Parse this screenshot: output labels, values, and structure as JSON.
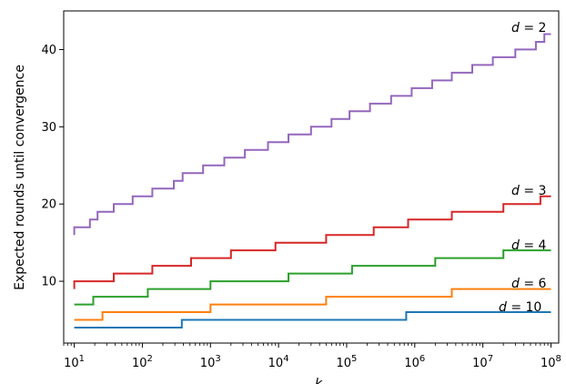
{
  "chart_data": {
    "type": "line",
    "step": true,
    "xscale": "log",
    "xlim": [
      7,
      130000000
    ],
    "ylim": [
      2,
      45
    ],
    "xlabel": "k",
    "ylabel": "Expected rounds until convergence",
    "title": "",
    "grid": false,
    "legend": "none",
    "x_ticks": [
      10,
      100,
      1000,
      10000,
      100000,
      1000000,
      10000000,
      100000000
    ],
    "x_tick_labels": [
      {
        "base": "10",
        "exp": "1"
      },
      {
        "base": "10",
        "exp": "2"
      },
      {
        "base": "10",
        "exp": "3"
      },
      {
        "base": "10",
        "exp": "4"
      },
      {
        "base": "10",
        "exp": "5"
      },
      {
        "base": "10",
        "exp": "6"
      },
      {
        "base": "10",
        "exp": "7"
      },
      {
        "base": "10",
        "exp": "8"
      }
    ],
    "y_ticks": [
      10,
      20,
      30,
      40
    ],
    "series": [
      {
        "name": "d = 2",
        "color": "#9467bd",
        "points": [
          [
            10,
            16
          ],
          [
            10,
            17
          ],
          [
            17,
            17
          ],
          [
            17,
            18
          ],
          [
            22,
            18
          ],
          [
            22,
            19
          ],
          [
            38,
            19
          ],
          [
            38,
            20
          ],
          [
            72,
            20
          ],
          [
            72,
            21
          ],
          [
            140,
            21
          ],
          [
            140,
            22
          ],
          [
            290,
            22
          ],
          [
            290,
            23
          ],
          [
            390,
            23
          ],
          [
            390,
            24
          ],
          [
            780,
            24
          ],
          [
            780,
            25
          ],
          [
            1600,
            25
          ],
          [
            1600,
            26
          ],
          [
            3200,
            26
          ],
          [
            3200,
            27
          ],
          [
            7000,
            27
          ],
          [
            7000,
            28
          ],
          [
            14000,
            28
          ],
          [
            14000,
            29
          ],
          [
            30000,
            29
          ],
          [
            30000,
            30
          ],
          [
            60000,
            30
          ],
          [
            60000,
            31
          ],
          [
            110000,
            31
          ],
          [
            110000,
            32
          ],
          [
            220000,
            32
          ],
          [
            220000,
            33
          ],
          [
            450000,
            33
          ],
          [
            450000,
            34
          ],
          [
            900000,
            34
          ],
          [
            900000,
            35
          ],
          [
            1800000,
            35
          ],
          [
            1800000,
            36
          ],
          [
            3500000,
            36
          ],
          [
            3500000,
            37
          ],
          [
            7000000,
            37
          ],
          [
            7000000,
            38
          ],
          [
            14000000,
            38
          ],
          [
            14000000,
            39
          ],
          [
            30000000,
            39
          ],
          [
            30000000,
            40
          ],
          [
            60000000,
            40
          ],
          [
            60000000,
            41
          ],
          [
            80000000,
            41
          ],
          [
            80000000,
            42
          ],
          [
            100000000,
            42
          ]
        ]
      },
      {
        "name": "d = 3",
        "color": "#d62728",
        "points": [
          [
            10,
            9
          ],
          [
            10,
            10
          ],
          [
            38,
            10
          ],
          [
            38,
            11
          ],
          [
            140,
            11
          ],
          [
            140,
            12
          ],
          [
            520,
            12
          ],
          [
            520,
            13
          ],
          [
            2000,
            13
          ],
          [
            2000,
            14
          ],
          [
            9000,
            14
          ],
          [
            9000,
            15
          ],
          [
            50000,
            15
          ],
          [
            50000,
            16
          ],
          [
            250000,
            16
          ],
          [
            250000,
            17
          ],
          [
            800000,
            17
          ],
          [
            800000,
            18
          ],
          [
            3500000,
            18
          ],
          [
            3500000,
            19
          ],
          [
            20000000,
            19
          ],
          [
            20000000,
            20
          ],
          [
            70000000,
            20
          ],
          [
            70000000,
            21
          ],
          [
            100000000,
            21
          ]
        ]
      },
      {
        "name": "d = 4",
        "color": "#2ca02c",
        "points": [
          [
            10,
            7
          ],
          [
            10,
            7
          ],
          [
            19,
            7
          ],
          [
            19,
            8
          ],
          [
            120,
            8
          ],
          [
            120,
            9
          ],
          [
            1000,
            9
          ],
          [
            1000,
            10
          ],
          [
            14000,
            10
          ],
          [
            14000,
            11
          ],
          [
            120000,
            11
          ],
          [
            120000,
            12
          ],
          [
            2000000,
            12
          ],
          [
            2000000,
            13
          ],
          [
            20000000,
            13
          ],
          [
            20000000,
            14
          ],
          [
            100000000,
            14
          ]
        ]
      },
      {
        "name": "d = 6",
        "color": "#ff7f0e",
        "points": [
          [
            10,
            5
          ],
          [
            26,
            5
          ],
          [
            26,
            6
          ],
          [
            1000,
            6
          ],
          [
            1000,
            7
          ],
          [
            50000,
            7
          ],
          [
            50000,
            8
          ],
          [
            3500000,
            8
          ],
          [
            3500000,
            9
          ],
          [
            100000000,
            9
          ]
        ]
      },
      {
        "name": "d = 10",
        "color": "#1f77b4",
        "points": [
          [
            10,
            4
          ],
          [
            380,
            4
          ],
          [
            380,
            5
          ],
          [
            750000,
            5
          ],
          [
            750000,
            6
          ],
          [
            100000000,
            6
          ]
        ]
      }
    ]
  }
}
